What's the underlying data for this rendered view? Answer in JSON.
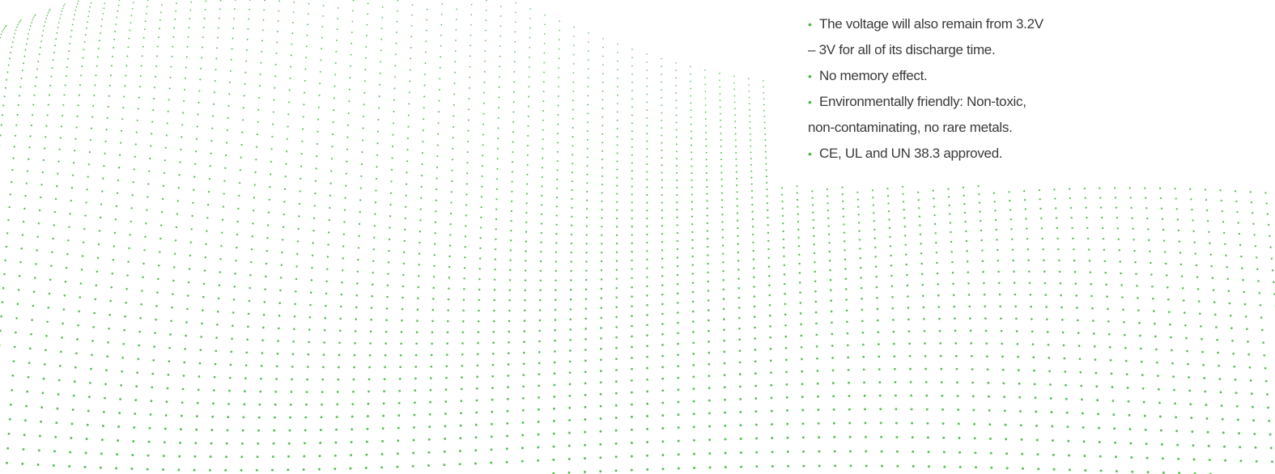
{
  "features": {
    "items": [
      {
        "lines": [
          "The voltage will also remain from 3.2V",
          "– 3V for all of its discharge time."
        ]
      },
      {
        "lines": [
          "No memory effect."
        ]
      },
      {
        "lines": [
          "Environmentally friendly: Non-toxic,",
          "non-contaminating, no rare metals."
        ]
      },
      {
        "lines": [
          "CE, UL and UN 38.3 approved."
        ]
      }
    ]
  }
}
